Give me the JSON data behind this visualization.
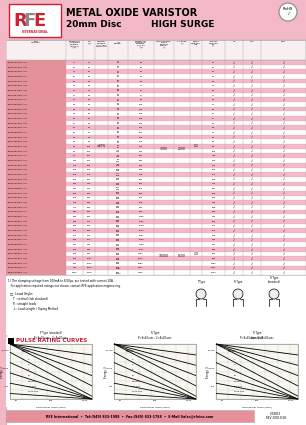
{
  "title_line1": "METAL OXIDE VARISTOR",
  "title_line2": "20mm Disc",
  "title_line3": "HIGH SURGE",
  "bg_color": "#f2b8c6",
  "footer_text": "RFE International  •  Tel:(949) 833-1988  •  Fax:(949) 833-1788  •  E-Mail Sales@rfeinc.com",
  "footer_right": "C/08813\nREV 2008.8.08",
  "pulse_title": "PULSE RATING CURVES",
  "graph_subtitles": [
    "P=8x20usec - 2=8x20usec",
    "P=8x20usec - 2=8x20usec",
    "P=8x20usec - 2=8x20usec"
  ],
  "graph_types": [
    "P Type (standard)",
    "R Type",
    "R Type\n(standard)"
  ],
  "part_numbers": [
    "JVR20S111K1..0.0",
    "JVR20S121K1..0.0",
    "JVR20S151K1..0.0",
    "JVR20S181K1..0.0",
    "JVR20S201K1..0.0",
    "JVR20S221K1..0.0",
    "JVR20S241K1..0.0",
    "JVR20S271K1..0.0",
    "JVR20S301K1..0.0",
    "JVR20S331K1..0.0",
    "JVR20S361K1..0.0",
    "JVR20S391K1..0.0",
    "JVR20S431K1..0.0",
    "JVR20S471K1..0.0",
    "JVR20S511K1..0.0",
    "JVR20S561K1..0.0",
    "JVR20S621K1..0.0",
    "JVR20S681K1..0.0",
    "JVR20S751K1..0.0",
    "JVR20S821K1..0.0",
    "JVR20S911K1..0.0",
    "JVR20S102K1..0.0",
    "JVR20S112K1..0.0",
    "JVR20S122K1..0.0",
    "JVR20S132K1..0.0",
    "JVR20S152K1..0.0",
    "JVR20S162K1..0.0",
    "JVR20S182K1..0.0",
    "JVR20S202K1..0.0",
    "JVR20S222K1..0.0",
    "JVR20S242K1..0.0",
    "JVR20S272K1..0.0",
    "JVR20S302K1..0.0",
    "JVR20S332K1..0.0",
    "JVR20S362K1..0.0",
    "JVR20S392K1..0.0",
    "JVR20S432K1..0.0",
    "JVR20S472K1..0.0",
    "JVR20S512K1..0.0",
    "JVR20S562K1..0.0",
    "JVR20S622K1..0.0",
    "JVR20S682K1..0.0",
    "JVR20S752K1..0.0",
    "JVR20S822K1..0.0",
    "JVR20S912K1..0.0",
    "JVR20S103K1..0.0"
  ],
  "ac_voltages": [
    11,
    14,
    14,
    18,
    20,
    22,
    24,
    27,
    30,
    33,
    36,
    39,
    43,
    47,
    51,
    56,
    62,
    68,
    75,
    82,
    91,
    100,
    110,
    120,
    130,
    150,
    160,
    180,
    200,
    220,
    240,
    270,
    300,
    330,
    360,
    390,
    430,
    470,
    510,
    560,
    620,
    680,
    750,
    820,
    910,
    1000
  ],
  "dc_voltages": [
    14,
    18,
    20,
    23,
    26,
    28,
    31,
    35,
    38,
    43,
    46,
    51,
    56,
    62,
    67,
    72,
    82,
    90,
    100,
    105,
    120,
    130,
    150,
    160,
    170,
    200,
    210,
    240,
    260,
    290,
    320,
    360,
    400,
    430,
    470,
    510,
    560,
    620,
    670,
    745,
    825,
    900,
    1000,
    1050,
    1200,
    1300
  ],
  "varistor_v_min": [
    10,
    13,
    14,
    16,
    18,
    20,
    22,
    25,
    27,
    30,
    32,
    35,
    39,
    43,
    46,
    50,
    56,
    61,
    68,
    74,
    82,
    90,
    99,
    108,
    117,
    135,
    144,
    162,
    180,
    198,
    216,
    243,
    270,
    297,
    324,
    351,
    387,
    423,
    459,
    504,
    558,
    612,
    675,
    738,
    819,
    900
  ],
  "varistor_v_max": [
    14,
    17,
    18,
    21,
    24,
    26,
    28,
    31,
    35,
    39,
    44,
    47,
    52,
    56,
    62,
    65,
    74,
    82,
    90,
    100,
    110,
    120,
    132,
    148,
    158,
    182,
    192,
    216,
    240,
    264,
    288,
    324,
    360,
    396,
    432,
    468,
    516,
    564,
    612,
    672,
    744,
    810,
    900,
    990,
    1085,
    1200
  ],
  "clamp_voltages": [
    36,
    45,
    50,
    58,
    65,
    71,
    77,
    87,
    96,
    106,
    116,
    126,
    138,
    151,
    164,
    180,
    199,
    218,
    240,
    264,
    291,
    320,
    352,
    384,
    416,
    480,
    512,
    576,
    640,
    704,
    768,
    864,
    960,
    1056,
    1152,
    1248,
    1374,
    1501,
    1628,
    1789,
    1971,
    2152,
    2370,
    2589,
    2871,
    3150
  ],
  "energy": [
    15,
    18,
    20,
    25,
    28,
    31,
    33,
    37,
    40,
    44,
    48,
    52,
    57,
    62,
    68,
    74,
    82,
    90,
    98,
    106,
    118,
    130,
    143,
    155,
    170,
    195,
    210,
    237,
    263,
    290,
    315,
    358,
    405,
    440,
    483,
    522,
    574,
    630,
    695,
    760,
    840,
    900,
    990,
    1090,
    1215,
    1320
  ],
  "wattage": [
    0.2,
    0.2,
    0.2,
    0.2,
    0.2,
    0.2,
    0.2,
    0.2,
    0.2,
    0.2,
    0.2,
    0.2,
    0.2,
    0.2,
    0.2,
    0.2,
    0.2,
    0.2,
    0.2,
    0.2,
    0.2,
    0.2,
    0.2,
    0.2,
    0.2,
    0.2,
    0.2,
    0.2,
    0.2,
    0.2,
    0.2,
    0.2,
    0.2,
    0.2,
    0.2,
    0.2,
    0.2,
    1.0,
    1.0,
    1.0,
    1.0,
    1.0,
    1.0,
    1.0,
    1.0,
    1.0
  ],
  "surge_change_idx": 37,
  "surge_1t_low": 3000,
  "surge_2t_low": 2000,
  "surge_1t_high": 10000,
  "surge_2t_high": 8500,
  "wattage_low": 0.2,
  "wattage_high": 1.0,
  "tolerance_str": "±10%",
  "pink_row": "#f4b8c8",
  "white_row": "#ffffff",
  "header_pink": "#f2b8c6",
  "pn_col_color": "#e8909a",
  "table_line_color": "#aaaaaa",
  "note1": "1) The clamping voltage from 100mA to 8/20μs, are tested with current 20A.",
  "note2": "   For application required ratings not shown, contact RFE application engineering.",
  "lead_style_hdr": "□  Lead Style:",
  "lead_styles": [
    "T : vertical (tds standard)",
    "R : straight leads",
    "-L : Lead Length / Taping Method"
  ]
}
